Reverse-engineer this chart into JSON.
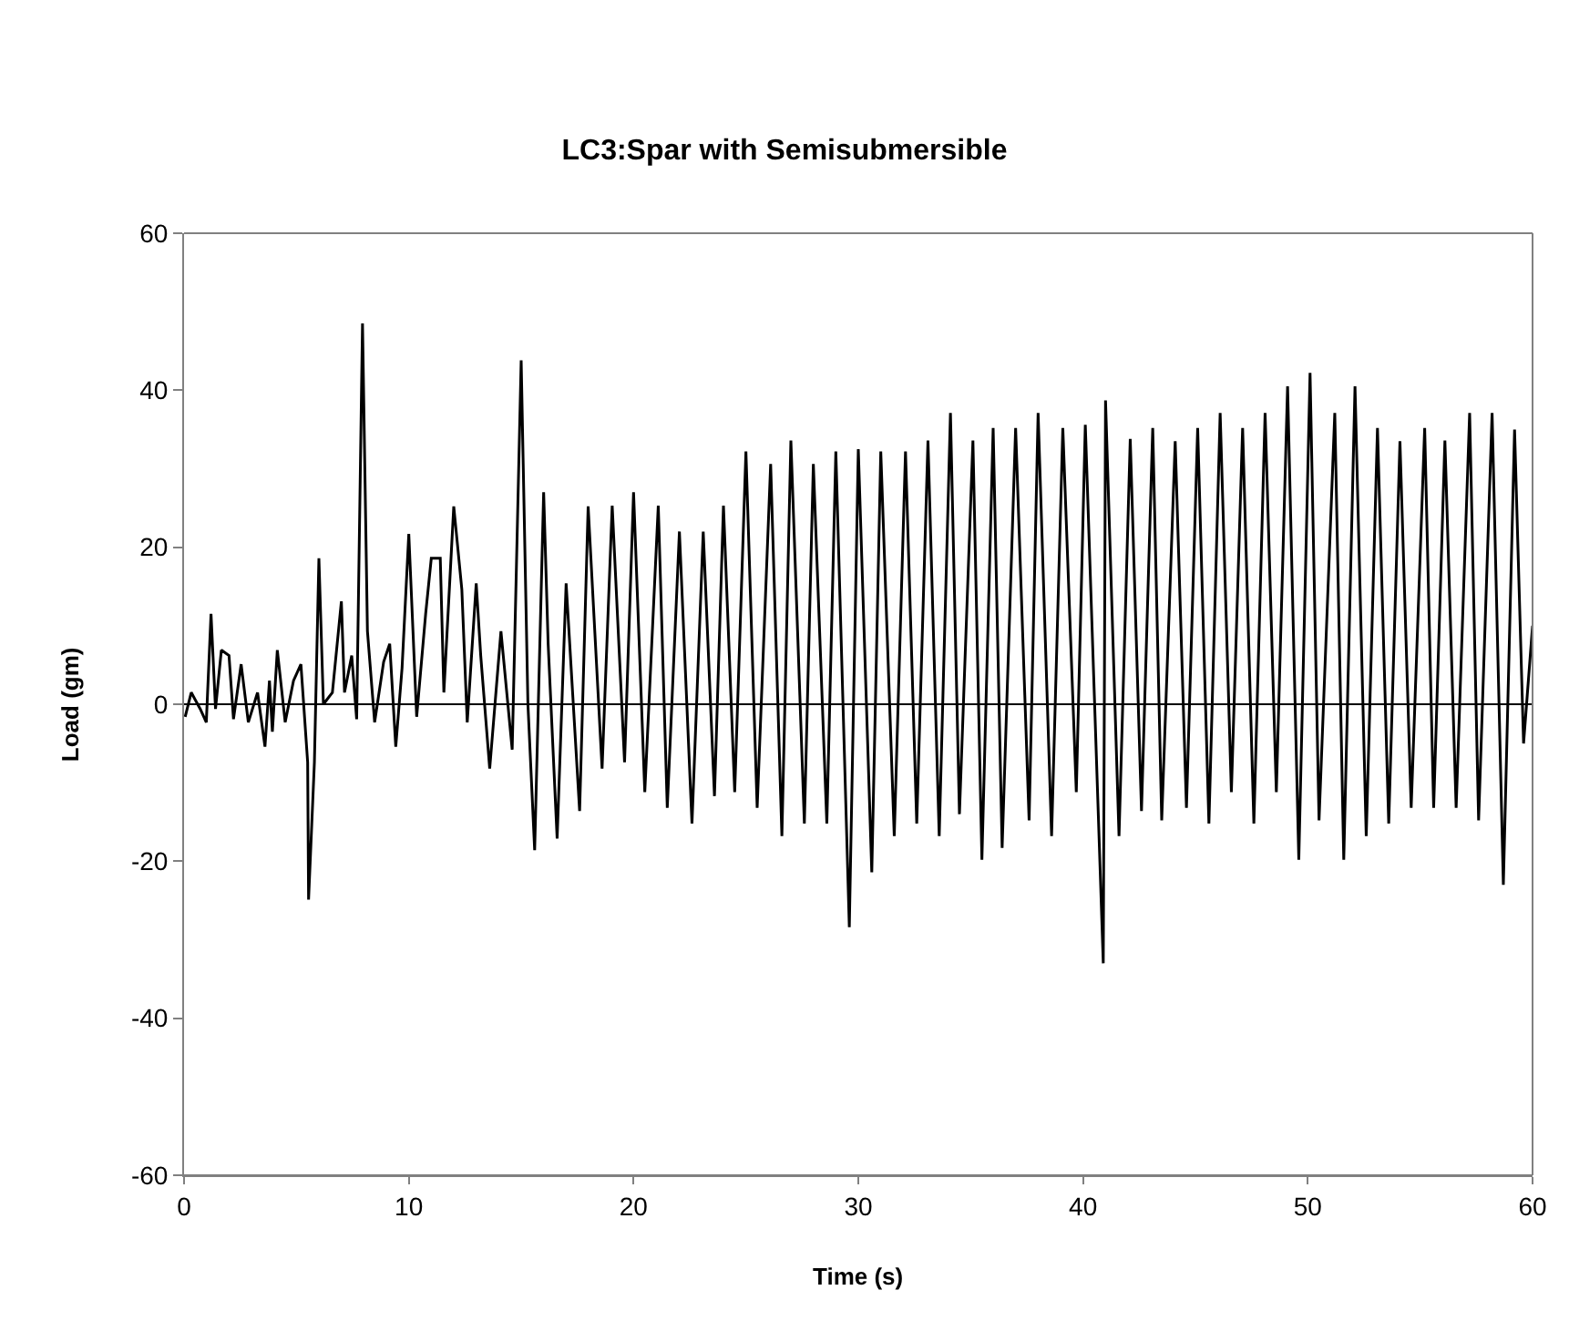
{
  "chart_data": {
    "type": "line",
    "title": "LC3:Spar with Semisubmersible",
    "xlabel": "Time (s)",
    "ylabel": "Load (gm)",
    "xlim": [
      0,
      60
    ],
    "xticks": [
      0,
      10,
      20,
      30,
      40,
      50,
      60
    ],
    "ylim": [
      -60,
      60
    ],
    "yticks": [
      -60,
      -40,
      -20,
      0,
      20,
      40,
      60
    ],
    "ref_lines": [
      {
        "axis": "y",
        "value": 0,
        "color": "#000000",
        "line_style": "solid"
      }
    ],
    "grid": false,
    "marker": "none",
    "line_style": "solid",
    "x": [
      0.05,
      0.32,
      0.72,
      0.99,
      1.2,
      1.4,
      1.66,
      2.0,
      2.2,
      2.54,
      2.86,
      3.27,
      3.6,
      3.8,
      3.93,
      4.15,
      4.5,
      4.87,
      5.2,
      5.5,
      5.54,
      5.8,
      6.0,
      6.2,
      6.6,
      7.0,
      7.14,
      7.46,
      7.68,
      7.94,
      8.16,
      8.48,
      8.88,
      9.15,
      9.42,
      9.7,
      10.0,
      10.35,
      10.75,
      11.0,
      11.4,
      11.56,
      12.0,
      12.36,
      12.6,
      13.0,
      13.2,
      13.6,
      14.1,
      14.6,
      15.0,
      15.3,
      15.6,
      16.0,
      16.2,
      16.6,
      17.0,
      17.6,
      17.98,
      18.6,
      19.05,
      19.6,
      20.0,
      20.5,
      21.1,
      21.5,
      22.04,
      22.6,
      23.1,
      23.6,
      24.0,
      24.5,
      25.0,
      25.5,
      26.1,
      26.6,
      27.0,
      27.6,
      28.0,
      28.6,
      29.0,
      29.6,
      30.0,
      30.6,
      31.0,
      31.6,
      32.1,
      32.6,
      33.1,
      33.6,
      34.1,
      34.5,
      35.1,
      35.5,
      36.0,
      36.4,
      37.0,
      37.6,
      38.0,
      38.6,
      39.1,
      39.7,
      40.1,
      40.9,
      41.0,
      41.6,
      42.1,
      42.6,
      43.1,
      43.5,
      44.1,
      44.6,
      45.1,
      45.6,
      46.1,
      46.6,
      47.1,
      47.6,
      48.1,
      48.6,
      49.1,
      49.6,
      50.1,
      50.5,
      51.2,
      51.6,
      52.1,
      52.6,
      53.1,
      53.6,
      54.1,
      54.6,
      55.2,
      55.6,
      56.1,
      56.6,
      57.2,
      57.6,
      58.2,
      58.7,
      59.2,
      59.6,
      60.0
    ],
    "series": [
      {
        "color": "#000000",
        "values": [
          -1.6,
          1.5,
          -0.6,
          -2.3,
          11.5,
          -0.6,
          6.9,
          6.2,
          -1.9,
          5.1,
          -2.3,
          1.5,
          -5.4,
          3.0,
          -3.5,
          6.9,
          -2.3,
          3.0,
          5.1,
          -7.4,
          -24.9,
          -7.4,
          18.6,
          0,
          1.5,
          13.1,
          1.5,
          6.2,
          -1.9,
          48.5,
          9.3,
          -2.3,
          5.4,
          7.7,
          -5.4,
          4.6,
          21.7,
          -1.6,
          11.5,
          18.6,
          18.6,
          1.5,
          25.2,
          14.6,
          -2.3,
          15.4,
          6.2,
          -8.2,
          9.3,
          -5.8,
          43.8,
          0,
          -18.6,
          27.0,
          7.7,
          -17.1,
          15.4,
          -13.6,
          25.2,
          -8.2,
          25.3,
          -7.4,
          27.0,
          -11.2,
          25.3,
          -13.2,
          22.0,
          -15.2,
          22.0,
          -11.7,
          25.3,
          -11.2,
          32.2,
          -13.2,
          30.6,
          -16.8,
          33.6,
          -15.2,
          30.6,
          -15.2,
          32.2,
          -28.4,
          32.5,
          -21.4,
          32.2,
          -16.8,
          32.2,
          -15.2,
          33.6,
          -16.8,
          37.1,
          -14.0,
          33.6,
          -19.8,
          35.2,
          -18.3,
          35.2,
          -14.8,
          37.1,
          -16.8,
          35.2,
          -11.2,
          35.6,
          -33.0,
          38.7,
          -16.8,
          33.8,
          -13.6,
          35.2,
          -14.8,
          33.5,
          -13.2,
          35.2,
          -15.2,
          37.1,
          -11.2,
          35.2,
          -15.2,
          37.1,
          -11.2,
          40.5,
          -19.8,
          42.2,
          -14.8,
          37.1,
          -19.8,
          40.5,
          -16.8,
          35.2,
          -15.2,
          33.5,
          -13.2,
          35.2,
          -13.2,
          33.6,
          -13.2,
          37.1,
          -14.8,
          37.1,
          -23.0,
          35.0,
          -5.0,
          10.0
        ]
      }
    ]
  }
}
